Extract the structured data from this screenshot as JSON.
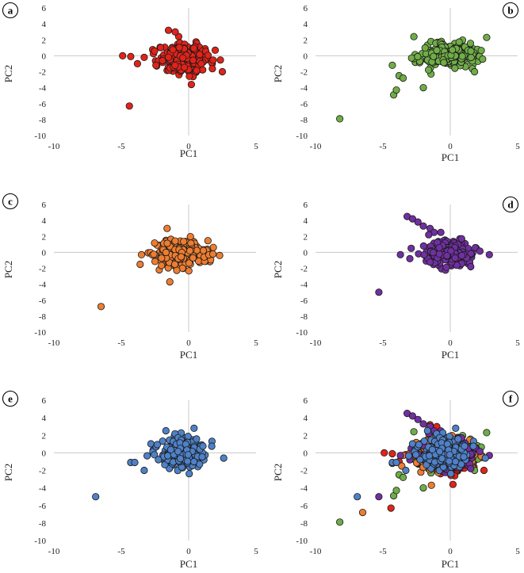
{
  "figure": {
    "description_text": "",
    "marker_edge_color": "#1a1a1a"
  },
  "colors": {
    "red": "#e2231a",
    "green": "#70ad47",
    "orange": "#ed7d31",
    "purple": "#7030a0",
    "blue": "#4f81c7"
  },
  "chart_data": [
    {
      "type": "scatter",
      "panel": "a",
      "xlabel": "PC1",
      "ylabel": "PC2",
      "xlim": [
        -10,
        5
      ],
      "ylim": [
        -10,
        6
      ],
      "xticks": [
        -10,
        -5,
        0,
        5
      ],
      "yticks": [
        -10,
        -8,
        -6,
        -4,
        -2,
        0,
        2,
        4,
        6
      ],
      "series": [
        {
          "name": "a",
          "color": "#e2231a",
          "cluster": {
            "center": [
              -0.2,
              -0.3
            ],
            "spread": [
              1.3,
              1.2
            ],
            "n": 260,
            "x_range": [
              -3.6,
              2.6
            ],
            "y_range": [
              -3.6,
              3.3
            ]
          },
          "points": [
            [
              -4.9,
              0.0
            ],
            [
              -4.4,
              -6.3
            ],
            [
              -4.3,
              -0.1
            ],
            [
              -3.8,
              -1.0
            ],
            [
              -3.3,
              -0.2
            ],
            [
              -1.5,
              3.2
            ],
            [
              -1.0,
              3.0
            ],
            [
              0.2,
              -3.6
            ],
            [
              2.5,
              -2.0
            ]
          ]
        }
      ]
    },
    {
      "type": "scatter",
      "panel": "b",
      "xlabel": "PC1",
      "ylabel": "PC2",
      "xlim": [
        -10,
        5
      ],
      "ylim": [
        -10,
        6
      ],
      "xticks": [
        -10,
        -5,
        0,
        5
      ],
      "yticks": [
        -10,
        -8,
        -6,
        -4,
        -2,
        0,
        2,
        4,
        6
      ],
      "series": [
        {
          "name": "b",
          "color": "#70ad47",
          "cluster": {
            "center": [
              -0.2,
              0.1
            ],
            "spread": [
              1.3,
              1.0
            ],
            "n": 260,
            "x_range": [
              -3.0,
              2.8
            ],
            "y_range": [
              -2.6,
              2.8
            ]
          },
          "points": [
            [
              -8.2,
              -7.9
            ],
            [
              -4.2,
              -4.9
            ],
            [
              -4.0,
              -4.3
            ],
            [
              -3.8,
              -2.5
            ],
            [
              -4.3,
              -1.2
            ],
            [
              -3.5,
              -2.8
            ],
            [
              -2.7,
              2.4
            ],
            [
              -2.0,
              -4.0
            ],
            [
              2.7,
              2.3
            ],
            [
              1.8,
              -2.0
            ]
          ]
        }
      ]
    },
    {
      "type": "scatter",
      "panel": "c",
      "xlabel": "PC1",
      "ylabel": "PC2",
      "xlim": [
        -10,
        5
      ],
      "ylim": [
        -10,
        6
      ],
      "xticks": [
        -10,
        -5,
        0,
        5
      ],
      "yticks": [
        -10,
        -8,
        -6,
        -4,
        -2,
        0,
        2,
        4,
        6
      ],
      "series": [
        {
          "name": "c",
          "color": "#ed7d31",
          "cluster": {
            "center": [
              -0.6,
              -0.1
            ],
            "spread": [
              1.3,
              1.1
            ],
            "n": 260,
            "x_range": [
              -3.7,
              2.3
            ],
            "y_range": [
              -2.8,
              3.0
            ]
          },
          "points": [
            [
              -6.5,
              -6.8
            ],
            [
              -3.6,
              -1.5
            ],
            [
              -3.5,
              -0.3
            ],
            [
              -1.4,
              -3.7
            ],
            [
              -1.6,
              3.0
            ],
            [
              2.3,
              -0.4
            ]
          ]
        }
      ]
    },
    {
      "type": "scatter",
      "panel": "d",
      "xlabel": "PC1",
      "ylabel": "PC2",
      "xlim": [
        -10,
        5
      ],
      "ylim": [
        -10,
        6
      ],
      "xticks": [
        -10,
        -5,
        0,
        5
      ],
      "yticks": [
        -10,
        -8,
        -6,
        -4,
        -2,
        0,
        2,
        4,
        6
      ],
      "series": [
        {
          "name": "d",
          "color": "#7030a0",
          "cluster": {
            "center": [
              0.0,
              -0.1
            ],
            "spread": [
              1.2,
              1.0
            ],
            "n": 240,
            "x_range": [
              -2.4,
              2.8
            ],
            "y_range": [
              -2.6,
              2.5
            ]
          },
          "points": [
            [
              -5.3,
              -5.0
            ],
            [
              -3.2,
              4.5
            ],
            [
              -2.8,
              4.2
            ],
            [
              -2.4,
              3.8
            ],
            [
              -2.0,
              3.3
            ],
            [
              -1.5,
              3.0
            ],
            [
              -1.2,
              2.5
            ],
            [
              -1.6,
              2.2
            ],
            [
              -0.7,
              2.5
            ],
            [
              -3.7,
              -0.3
            ],
            [
              -3.0,
              -0.8
            ],
            [
              -2.9,
              0.5
            ],
            [
              2.9,
              -0.3
            ]
          ]
        }
      ]
    },
    {
      "type": "scatter",
      "panel": "e",
      "xlabel": "PC1",
      "ylabel": "PC2",
      "xlim": [
        -10,
        5
      ],
      "ylim": [
        -10,
        6
      ],
      "xticks": [
        -10,
        -5,
        0,
        5
      ],
      "yticks": [
        -10,
        -8,
        -6,
        -4,
        -2,
        0,
        2,
        4,
        6
      ],
      "series": [
        {
          "name": "e",
          "color": "#4f81c7",
          "cluster": {
            "center": [
              -0.4,
              0.0
            ],
            "spread": [
              1.2,
              1.1
            ],
            "n": 260,
            "x_range": [
              -3.3,
              2.6
            ],
            "y_range": [
              -3.3,
              2.8
            ]
          },
          "points": [
            [
              -6.9,
              -5.0
            ],
            [
              -4.3,
              -1.1
            ],
            [
              -4.0,
              -1.1
            ],
            [
              -3.3,
              -2.0
            ],
            [
              0.4,
              2.8
            ],
            [
              2.6,
              -0.6
            ]
          ]
        }
      ]
    },
    {
      "type": "scatter",
      "panel": "f",
      "xlabel": "PC1",
      "ylabel": "PC2",
      "xlim": [
        -10,
        5
      ],
      "ylim": [
        -10,
        6
      ],
      "xticks": [
        -10,
        -5,
        0,
        5
      ],
      "yticks": [
        -10,
        -8,
        -6,
        -4,
        -2,
        0,
        2,
        4,
        6
      ],
      "overlay": [
        "a",
        "b",
        "c",
        "d",
        "e"
      ],
      "series": []
    }
  ],
  "panel_labels": [
    "a",
    "b",
    "c",
    "d",
    "e",
    "f"
  ]
}
